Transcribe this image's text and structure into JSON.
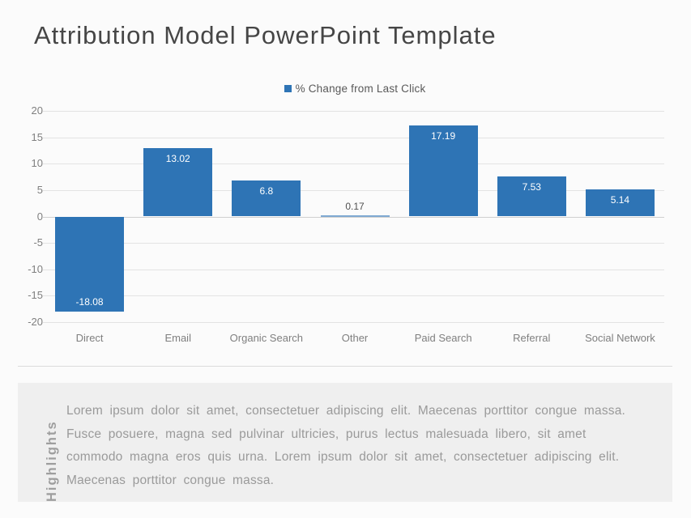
{
  "title": "Attribution Model PowerPoint Template",
  "chart_data": {
    "type": "bar",
    "title": "",
    "categories": [
      "Direct",
      "Email",
      "Organic Search",
      "Other",
      "Paid Search",
      "Referral",
      "Social Network"
    ],
    "series": [
      {
        "name": "% Change from Last Click",
        "values": [
          -18.08,
          13.02,
          6.8,
          0.17,
          17.19,
          7.53,
          5.14
        ]
      }
    ],
    "value_labels": [
      "-18.08",
      "13.02",
      "6.8",
      "0.17",
      "17.19",
      "7.53",
      "5.14"
    ],
    "ylim": [
      -20,
      20
    ],
    "yticks": [
      20,
      15,
      10,
      5,
      0,
      -5,
      -10,
      -15,
      -20
    ],
    "grid": true,
    "legend_position": "top-center",
    "bar_color": "#2e74b5",
    "tiny_bar_color": "#7fa9d2"
  },
  "highlights": {
    "label": "Highlights",
    "lines": [
      "Lorem ipsum dolor sit amet, consectetuer adipiscing elit. Maecenas porttitor congue massa.",
      "Fusce posuere, magna sed pulvinar ultricies, purus lectus malesuada libero, sit amet",
      "commodo magna eros quis urna. Lorem ipsum dolor sit amet, consectetuer adipiscing elit.",
      "Maecenas porttitor congue massa."
    ]
  },
  "colors": {
    "accent": "#2e74b5",
    "title_text": "#464646",
    "axis_text": "#7f7f7f",
    "legend_text": "#595959",
    "panel_bg": "#efefef",
    "page_bg": "#fbfbfb"
  }
}
